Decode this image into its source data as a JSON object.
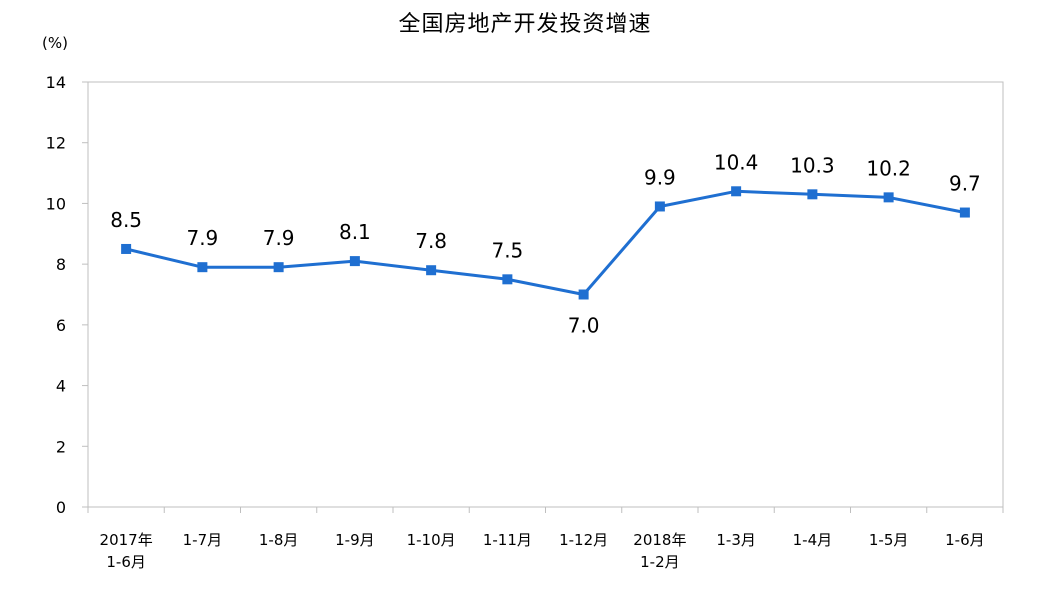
{
  "chart_data": {
    "type": "line",
    "title": "全国房地产开发投资增速",
    "ylabel": "(%)",
    "xlabel": "",
    "ylim": [
      0,
      14
    ],
    "yticks": [
      0,
      2,
      4,
      6,
      8,
      10,
      12,
      14
    ],
    "grid": false,
    "legend": "none",
    "categories": [
      [
        "2017年",
        "1-6月"
      ],
      [
        "1-7月"
      ],
      [
        "1-8月"
      ],
      [
        "1-9月"
      ],
      [
        "1-10月"
      ],
      [
        "1-11月"
      ],
      [
        "1-12月"
      ],
      [
        "2018年",
        "1-2月"
      ],
      [
        "1-3月"
      ],
      [
        "1-4月"
      ],
      [
        "1-5月"
      ],
      [
        "1-6月"
      ]
    ],
    "series": [
      {
        "values": [
          8.5,
          7.9,
          7.9,
          8.1,
          7.8,
          7.5,
          7.0,
          9.9,
          10.4,
          10.3,
          10.2,
          9.7
        ],
        "labels": [
          "8.5",
          "7.9",
          "7.9",
          "8.1",
          "7.8",
          "7.5",
          "7.0",
          "9.9",
          "10.4",
          "10.3",
          "10.2",
          "9.7"
        ],
        "color": "#1F6FD1"
      }
    ]
  }
}
